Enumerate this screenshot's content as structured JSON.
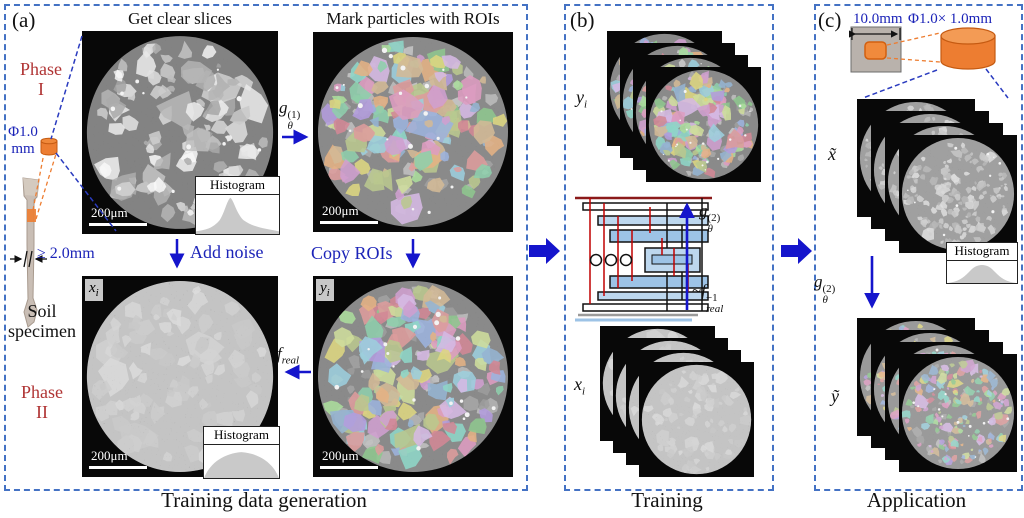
{
  "colors": {
    "panel_border": "#4472c4",
    "arrow_blue": "#1515cc",
    "text_blue": "#1c24b8",
    "text_red": "#b03434",
    "orange": "#ed7d31",
    "histogram_fill": "#c9c9c9"
  },
  "figure": {
    "panel_a": {
      "tag": "(a)",
      "caption": "Training data generation",
      "step1_title": "Get clear slices",
      "step2_title": "Mark particles with ROIs",
      "phase1_line1": "Phase",
      "phase1_line2": "I",
      "phase2_line1": "Phase",
      "phase2_line2": "II",
      "specimen_line1": "Soil",
      "specimen_line2": "specimen",
      "diameter_line1": "Φ1.0",
      "diameter_line2": "mm",
      "min_size": "≥ 2.0mm",
      "add_noise": "Add noise",
      "copy_rois": "Copy ROIs",
      "scalebar": "200μm",
      "histogram": "Histogram"
    },
    "panel_b": {
      "tag": "(b)",
      "caption": "Training"
    },
    "panel_c": {
      "tag": "(c)",
      "caption": "Application",
      "sample_width": "10.0mm",
      "core_size": "Φ1.0× 1.0mm",
      "histogram": "Histogram"
    },
    "math": {
      "g1": {
        "base": "g",
        "sub": "θ",
        "sup": "(1)"
      },
      "g2": {
        "base": "g",
        "sub": "θ",
        "sup": "(2)"
      },
      "freal": {
        "base": "f",
        "sub": "real"
      },
      "freal_inv": {
        "prefix": "~",
        "base": "f",
        "sub": "real",
        "sup": "−1"
      },
      "xi": {
        "base": "x",
        "sub": "i"
      },
      "yi": {
        "base": "y",
        "sub": "i"
      },
      "x_tilde": "x̃",
      "y_tilde": "ỹ"
    }
  }
}
